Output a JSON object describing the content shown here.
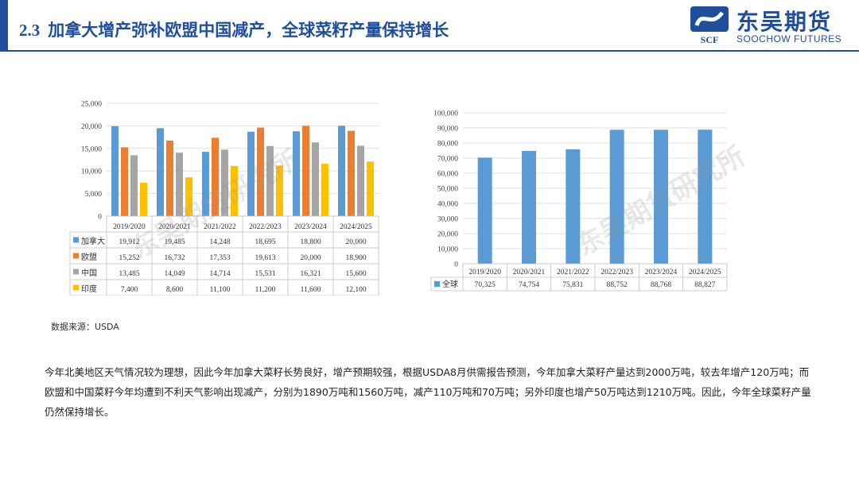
{
  "header": {
    "section_number": "2.3",
    "title": "加拿大增产弥补欧盟中国减产，全球菜籽产量保持增长",
    "logo_cn": "东吴期货",
    "logo_en": "SOOCHOW FUTURES",
    "logo_mark": "SCF"
  },
  "watermark": "东吴期货研究所",
  "source_note": "数据来源：USDA",
  "body_text": "今年北美地区天气情况较为理想，因此今年加拿大菜籽长势良好，增产预期较强，根据USDA8月供需报告预测，今年加拿大菜籽产量达到2000万吨，较去年增产120万吨；而欧盟和中国菜籽今年均遭到不利天气影响出现减产，分别为1890万吨和1560万吨，减产110万吨和70万吨；另外印度也增产50万吨达到1210万吨。因此，今年全球菜籽产量仍然保持增长。",
  "colors": {
    "brand": "#1f4e9d",
    "canada": "#5b9bd5",
    "eu": "#ed7d31",
    "china": "#a5a5a5",
    "india": "#ffc000",
    "global": "#5b9bd5"
  },
  "chart_data": [
    {
      "type": "bar",
      "categories": [
        "2019/2020",
        "2020/2021",
        "2021/2022",
        "2022/2023",
        "2023/2024",
        "2024/2025"
      ],
      "series": [
        {
          "name": "加拿大",
          "values": [
            19912,
            19485,
            14248,
            18695,
            18800,
            20000
          ],
          "labels": [
            "19,912",
            "19,485",
            "14,248",
            "18,695",
            "18,800",
            "20,000"
          ]
        },
        {
          "name": "欧盟",
          "values": [
            15252,
            16732,
            17353,
            19613,
            20000,
            18900
          ],
          "labels": [
            "15,252",
            "16,732",
            "17,353",
            "19,613",
            "20,000",
            "18,900"
          ]
        },
        {
          "name": "中国",
          "values": [
            13485,
            14049,
            14714,
            15531,
            16321,
            15600
          ],
          "labels": [
            "13,485",
            "14,049",
            "14,714",
            "15,531",
            "16,321",
            "15,600"
          ]
        },
        {
          "name": "印度",
          "values": [
            7400,
            8600,
            11100,
            11200,
            11600,
            12100
          ],
          "labels": [
            "7,400",
            "8,600",
            "11,100",
            "11,200",
            "11,600",
            "12,100"
          ]
        }
      ],
      "ylim": [
        0,
        25000
      ],
      "yticks": [
        "0",
        "5,000",
        "10,000",
        "15,000",
        "20,000",
        "25,000"
      ],
      "legend": "data-table"
    },
    {
      "type": "bar",
      "categories": [
        "2019/2020",
        "2020/2021",
        "2021/2022",
        "2022/2023",
        "2023/2024",
        "2024/2025"
      ],
      "series": [
        {
          "name": "全球",
          "values": [
            70325,
            74754,
            75831,
            88752,
            88768,
            88827
          ],
          "labels": [
            "70,325",
            "74,754",
            "75,831",
            "88,752",
            "88,768",
            "88,827"
          ]
        }
      ],
      "ylim": [
        0,
        100000
      ],
      "yticks": [
        "0",
        "10,000",
        "20,000",
        "30,000",
        "40,000",
        "50,000",
        "60,000",
        "70,000",
        "80,000",
        "90,000",
        "100,000"
      ],
      "legend": "data-table"
    }
  ]
}
